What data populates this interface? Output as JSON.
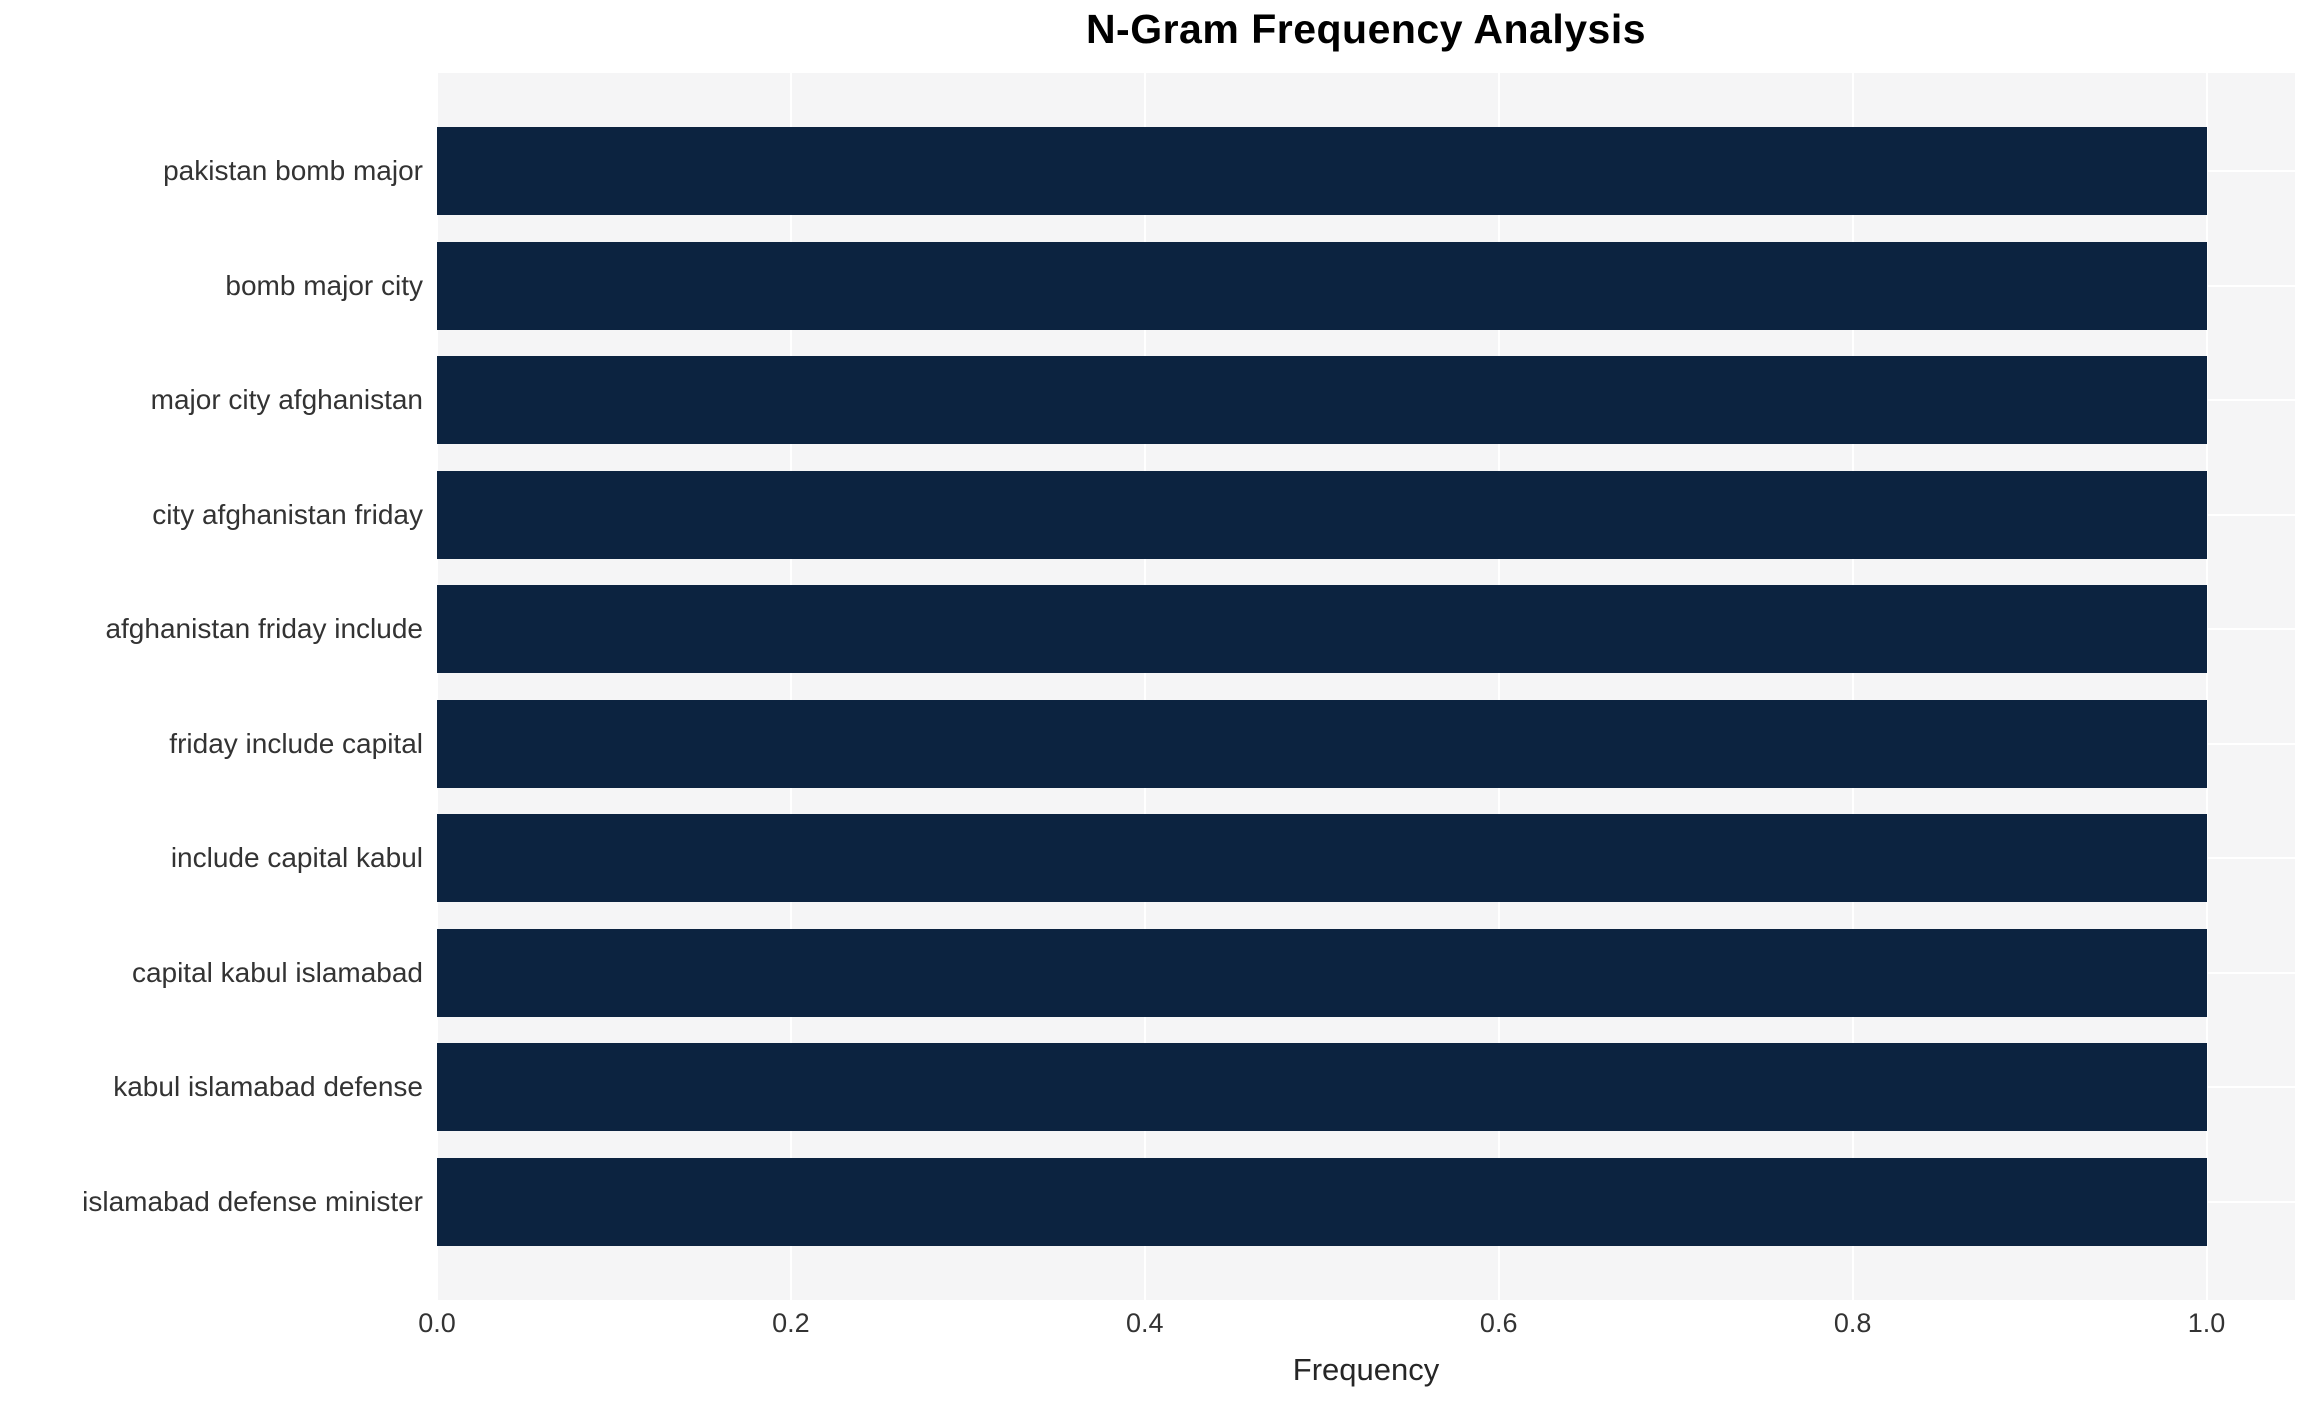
{
  "chart_data": {
    "type": "bar",
    "orientation": "horizontal",
    "title": "N-Gram Frequency Analysis",
    "xlabel": "Frequency",
    "ylabel": "",
    "categories": [
      "pakistan bomb major",
      "bomb major city",
      "major city afghanistan",
      "city afghanistan friday",
      "afghanistan friday include",
      "friday include capital",
      "include capital kabul",
      "capital kabul islamabad",
      "kabul islamabad defense",
      "islamabad defense minister"
    ],
    "values": [
      1.0,
      1.0,
      1.0,
      1.0,
      1.0,
      1.0,
      1.0,
      1.0,
      1.0,
      1.0
    ],
    "xlim": [
      0,
      1.05
    ],
    "xticks": [
      {
        "value": 0.0,
        "label": "0.0"
      },
      {
        "value": 0.2,
        "label": "0.2"
      },
      {
        "value": 0.4,
        "label": "0.4"
      },
      {
        "value": 0.6,
        "label": "0.6"
      },
      {
        "value": 0.8,
        "label": "0.8"
      },
      {
        "value": 1.0,
        "label": "1.0"
      }
    ],
    "grid": true,
    "legend": false,
    "colors": {
      "bar": "#0c2340",
      "plot_bg": "#f5f5f6",
      "grid": "#ffffff",
      "tick_text": "#333333",
      "title_text": "#000000"
    }
  }
}
